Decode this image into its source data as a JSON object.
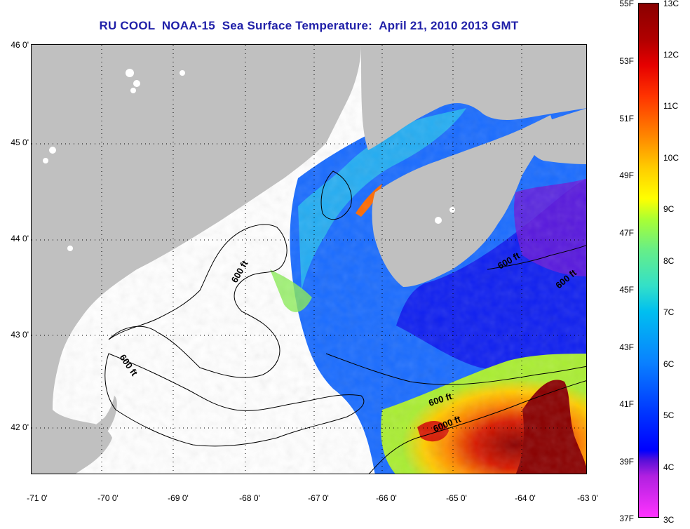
{
  "title": "RU COOL  NOAA-15  Sea Surface Temperature:  April 21, 2010 2013 GMT",
  "map": {
    "lon_range": [
      -71,
      -63
    ],
    "lat_range": [
      41.5,
      46
    ],
    "lat_ticks": [
      "46 0'",
      "45 0'",
      "44 0'",
      "43 0'",
      "42 0'"
    ],
    "lon_ticks": [
      "-71 0'",
      "-70 0'",
      "-69 0'",
      "-68 0'",
      "-67 0'",
      "-66 0'",
      "-65 0'",
      "-64 0'",
      "-63 0'"
    ],
    "land_color": "#c0c0c0",
    "cloud_color": "#ffffff",
    "grid": "dotted",
    "contour_labels": [
      "600 ft",
      "600 ft",
      "600 ft",
      "600 ft",
      "600 ft",
      "6000 ft"
    ]
  },
  "colorbar": {
    "fahrenheit_labels": [
      "55F",
      "53F",
      "51F",
      "49F",
      "47F",
      "45F",
      "43F",
      "41F",
      "39F",
      "37F"
    ],
    "celsius_labels": [
      "13C",
      "12C",
      "11C",
      "10C",
      "9C",
      "8C",
      "7C",
      "6C",
      "5C",
      "4C",
      "3C"
    ],
    "range_c": [
      3,
      13
    ],
    "colors": {
      "cold": "#ff33ff",
      "cool": "#0000ff",
      "mid": "#00bff0",
      "warm": "#ffff00",
      "hot": "#8a0000"
    }
  }
}
